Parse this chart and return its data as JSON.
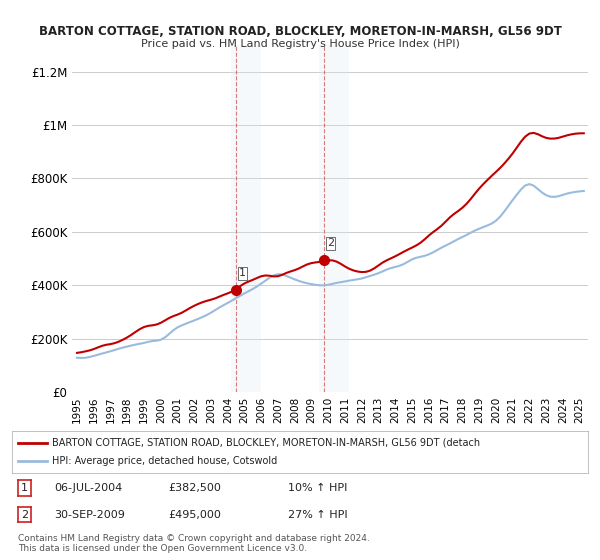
{
  "title1": "BARTON COTTAGE, STATION ROAD, BLOCKLEY, MORETON-IN-MARSH, GL56 9DT",
  "title2": "Price paid vs. HM Land Registry's House Price Index (HPI)",
  "ylabel_ticks": [
    "£0",
    "£200K",
    "£400K",
    "£600K",
    "£800K",
    "£1M",
    "£1.2M"
  ],
  "ytick_vals": [
    0,
    200000,
    400000,
    600000,
    800000,
    1000000,
    1200000
  ],
  "ylim": [
    0,
    1300000
  ],
  "xlim_start": 1995.0,
  "xlim_end": 2025.5,
  "xticks": [
    1995,
    1996,
    1997,
    1998,
    1999,
    2000,
    2001,
    2002,
    2003,
    2004,
    2005,
    2006,
    2007,
    2008,
    2009,
    2010,
    2011,
    2012,
    2013,
    2014,
    2015,
    2016,
    2017,
    2018,
    2019,
    2020,
    2021,
    2022,
    2023,
    2024,
    2025
  ],
  "sale1_x": 2004.5,
  "sale1_y": 382500,
  "sale2_x": 2009.75,
  "sale2_y": 495000,
  "shading1_x": 2004.5,
  "shading2_x": 2009.75,
  "sale_color": "#c00000",
  "sale_marker_color": "#c00000",
  "hpi_color": "#99bbdd",
  "legend_red_label": "BARTON COTTAGE, STATION ROAD, BLOCKLEY, MORETON-IN-MARSH, GL56 9DT (detach",
  "legend_blue_label": "HPI: Average price, detached house, Cotswold",
  "table_entries": [
    {
      "num": "1",
      "date": "06-JUL-2004",
      "price": "£382,500",
      "change": "10% ↑ HPI"
    },
    {
      "num": "2",
      "date": "30-SEP-2009",
      "price": "£495,000",
      "change": "27% ↑ HPI"
    }
  ],
  "footnote": "Contains HM Land Registry data © Crown copyright and database right 2024.\nThis data is licensed under the Open Government Licence v3.0.",
  "bg_color": "#ffffff",
  "plot_bg_color": "#ffffff",
  "grid_color": "#cccccc",
  "shade_color": "#dde8f5"
}
